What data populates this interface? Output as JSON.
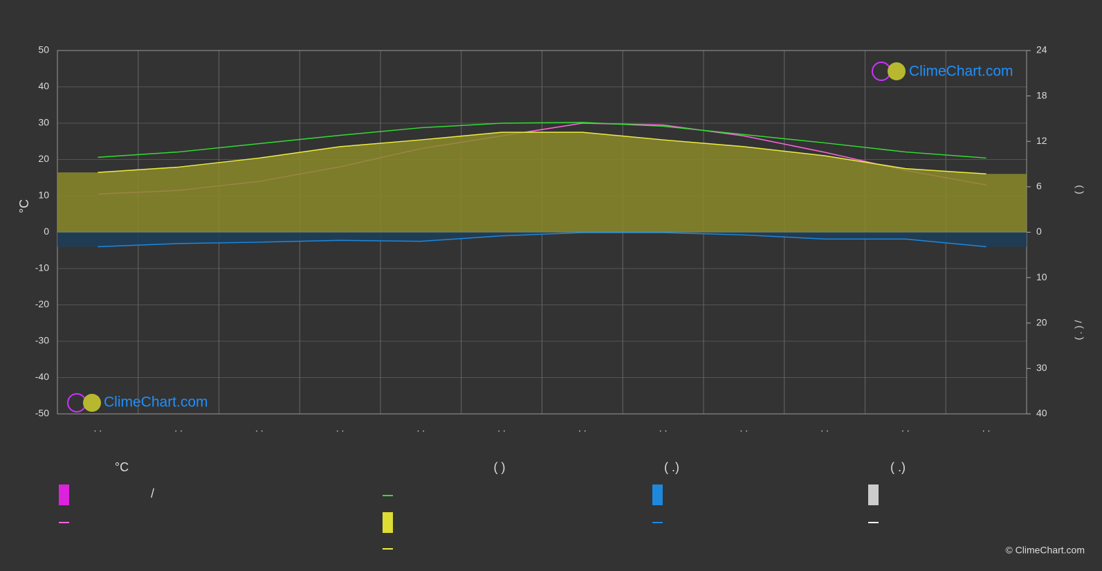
{
  "chart_data": {
    "type": "line",
    "y_label": "°C",
    "y2_label": "(       )",
    "precip_label": "( . )   /",
    "categories": [
      ". .",
      ". .",
      ". .",
      ". .",
      ". .",
      ". .",
      ". .",
      ". .",
      ". .",
      ". .",
      ". .",
      ". ."
    ],
    "ylim": [
      -50,
      50
    ],
    "yticks": [
      -50,
      -40,
      -30,
      -20,
      -10,
      0,
      10,
      20,
      30,
      40,
      50
    ],
    "y2lim": [
      0,
      24
    ],
    "y2ticks": [
      0,
      6,
      12,
      18,
      24
    ],
    "precip_lim": [
      0,
      40
    ],
    "precip_ticks": [
      10,
      20,
      30,
      40
    ],
    "grid": true,
    "series": [
      {
        "color": "#ff66dd",
        "values": [
          10.5,
          11.5,
          14,
          18,
          23,
          26.5,
          30,
          29.5,
          26.5,
          22,
          17,
          13
        ]
      },
      {
        "color": "#33dd33",
        "axis": "y2",
        "values": [
          9.9,
          10.6,
          11.7,
          12.8,
          13.8,
          14.4,
          14.5,
          14.0,
          12.9,
          11.8,
          10.6,
          9.8
        ]
      },
      {
        "color": "#eeee44",
        "axis": "y2",
        "fill": "#8a8a2a",
        "values": [
          7.9,
          8.6,
          9.8,
          11.3,
          12.2,
          13.2,
          13.2,
          12.2,
          11.3,
          10.1,
          8.4,
          7.7
        ]
      },
      {
        "color": "#1e88dd",
        "axis": "precip",
        "fill": "#1d3e5a",
        "values": [
          3.2,
          2.5,
          2.2,
          1.8,
          2.0,
          0.8,
          0.1,
          0.1,
          0.6,
          1.5,
          1.5,
          3.2
        ]
      }
    ],
    "legend_headings": [
      "°C",
      "(          )",
      "(   .)",
      "(   .)"
    ],
    "legend_text": "/",
    "watermark": "ClimeChart.com",
    "copyright": "© ClimeChart.com"
  }
}
